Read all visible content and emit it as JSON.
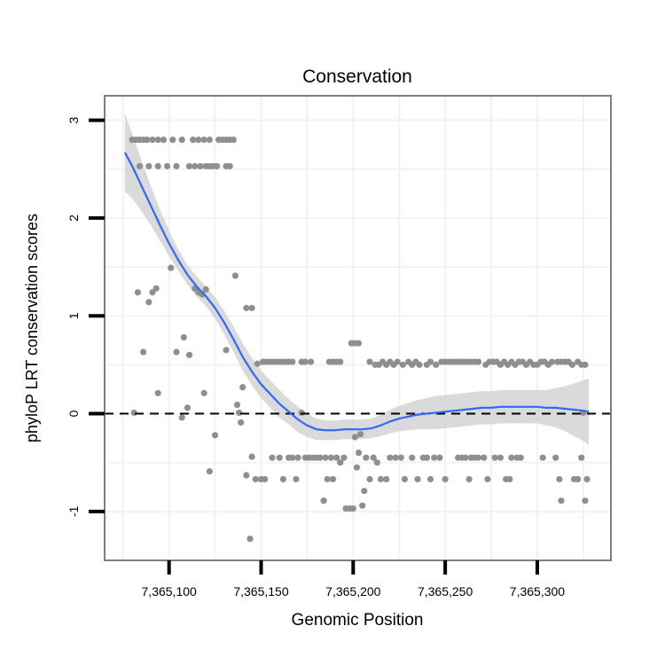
{
  "chart_data": {
    "type": "scatter",
    "title": "Conservation",
    "xlabel": "Genomic Position",
    "ylabel": "phyloP LRT conservation scores",
    "xlim": [
      7365065,
      7365340
    ],
    "ylim": [
      -1.5,
      3.25
    ],
    "x_ticks": [
      7365100,
      7365150,
      7365200,
      7365250,
      7365300
    ],
    "x_tick_labels": [
      "7,365,100",
      "7,365,150",
      "7,365,200",
      "7,365,250",
      "7,365,300"
    ],
    "y_ticks": [
      -1,
      0,
      1,
      2,
      3
    ],
    "y_tick_labels": [
      "-1",
      "0",
      "1",
      "2",
      "3"
    ],
    "reference_line": {
      "y": 0,
      "style": "dashed"
    },
    "colors": {
      "points": "#8f8f8f",
      "smooth": "#3366ff",
      "band": "#d3d3d3",
      "frame": "#7f7f7f",
      "grid": "#f2f2f2"
    },
    "points": [
      [
        7365080,
        2.8
      ],
      [
        7365082,
        2.8
      ],
      [
        7365084,
        2.8
      ],
      [
        7365086,
        2.8
      ],
      [
        7365088,
        2.8
      ],
      [
        7365091,
        2.8
      ],
      [
        7365094,
        2.8
      ],
      [
        7365097,
        2.8
      ],
      [
        7365102,
        2.8
      ],
      [
        7365107,
        2.8
      ],
      [
        7365113,
        2.8
      ],
      [
        7365116,
        2.8
      ],
      [
        7365119,
        2.8
      ],
      [
        7365122,
        2.8
      ],
      [
        7365127,
        2.8
      ],
      [
        7365129,
        2.8
      ],
      [
        7365131,
        2.8
      ],
      [
        7365133,
        2.8
      ],
      [
        7365135,
        2.8
      ],
      [
        7365084,
        2.53
      ],
      [
        7365089,
        2.53
      ],
      [
        7365094,
        2.53
      ],
      [
        7365099,
        2.53
      ],
      [
        7365104,
        2.53
      ],
      [
        7365111,
        2.53
      ],
      [
        7365114,
        2.53
      ],
      [
        7365117,
        2.53
      ],
      [
        7365120,
        2.53
      ],
      [
        7365122,
        2.53
      ],
      [
        7365124,
        2.53
      ],
      [
        7365126,
        2.53
      ],
      [
        7365131,
        2.53
      ],
      [
        7365133,
        2.53
      ],
      [
        7365081,
        0.01
      ],
      [
        7365083,
        1.24
      ],
      [
        7365086,
        0.63
      ],
      [
        7365089,
        1.14
      ],
      [
        7365091,
        1.24
      ],
      [
        7365093,
        1.28
      ],
      [
        7365094,
        0.21
      ],
      [
        7365101,
        1.49
      ],
      [
        7365104,
        0.63
      ],
      [
        7365107,
        -0.04
      ],
      [
        7365108,
        0.78
      ],
      [
        7365110,
        0.06
      ],
      [
        7365111,
        0.6
      ],
      [
        7365114,
        1.28
      ],
      [
        7365116,
        1.24
      ],
      [
        7365118,
        1.22
      ],
      [
        7365119,
        0.21
      ],
      [
        7365120,
        1.27
      ],
      [
        7365122,
        -0.59
      ],
      [
        7365125,
        -0.22
      ],
      [
        7365131,
        0.65
      ],
      [
        7365136,
        1.41
      ],
      [
        7365137,
        0.09
      ],
      [
        7365138,
        0.01
      ],
      [
        7365139,
        -0.09
      ],
      [
        7365140,
        0.27
      ],
      [
        7365142,
        -0.63
      ],
      [
        7365142,
        1.08
      ],
      [
        7365144,
        -1.28
      ],
      [
        7365145,
        -0.44
      ],
      [
        7365145,
        1.08
      ],
      [
        7365147,
        -0.67
      ],
      [
        7365148,
        0.51
      ],
      [
        7365150,
        -0.67
      ],
      [
        7365152,
        -0.67
      ],
      [
        7365151,
        0.53
      ],
      [
        7365153,
        0.53
      ],
      [
        7365155,
        0.53
      ],
      [
        7365157,
        0.53
      ],
      [
        7365159,
        0.53
      ],
      [
        7365161,
        0.53
      ],
      [
        7365163,
        0.53
      ],
      [
        7365165,
        0.53
      ],
      [
        7365167,
        0.53
      ],
      [
        7365172,
        0.53
      ],
      [
        7365174,
        0.53
      ],
      [
        7365177,
        0.53
      ],
      [
        7365187,
        0.53
      ],
      [
        7365189,
        0.53
      ],
      [
        7365191,
        0.53
      ],
      [
        7365193,
        0.53
      ],
      [
        7365199,
        0.72
      ],
      [
        7365201,
        0.72
      ],
      [
        7365203,
        0.72
      ],
      [
        7365209,
        0.53
      ],
      [
        7365212,
        0.5
      ],
      [
        7365214,
        0.5
      ],
      [
        7365216,
        0.53
      ],
      [
        7365218,
        0.5
      ],
      [
        7365220,
        0.53
      ],
      [
        7365222,
        0.5
      ],
      [
        7365224,
        0.53
      ],
      [
        7365227,
        0.5
      ],
      [
        7365230,
        0.53
      ],
      [
        7365232,
        0.5
      ],
      [
        7365234,
        0.53
      ],
      [
        7365236,
        0.5
      ],
      [
        7365240,
        0.5
      ],
      [
        7365242,
        0.53
      ],
      [
        7365245,
        0.5
      ],
      [
        7365248,
        0.53
      ],
      [
        7365250,
        0.53
      ],
      [
        7365252,
        0.53
      ],
      [
        7365254,
        0.53
      ],
      [
        7365256,
        0.53
      ],
      [
        7365258,
        0.53
      ],
      [
        7365260,
        0.53
      ],
      [
        7365262,
        0.53
      ],
      [
        7365264,
        0.53
      ],
      [
        7365266,
        0.53
      ],
      [
        7365268,
        0.53
      ],
      [
        7365272,
        0.5
      ],
      [
        7365274,
        0.53
      ],
      [
        7365276,
        0.53
      ],
      [
        7365278,
        0.53
      ],
      [
        7365280,
        0.5
      ],
      [
        7365282,
        0.53
      ],
      [
        7365284,
        0.5
      ],
      [
        7365286,
        0.53
      ],
      [
        7365288,
        0.5
      ],
      [
        7365290,
        0.53
      ],
      [
        7365292,
        0.53
      ],
      [
        7365294,
        0.5
      ],
      [
        7365296,
        0.53
      ],
      [
        7365298,
        0.5
      ],
      [
        7365300,
        0.5
      ],
      [
        7365302,
        0.53
      ],
      [
        7365304,
        0.53
      ],
      [
        7365306,
        0.5
      ],
      [
        7365308,
        0.53
      ],
      [
        7365311,
        0.53
      ],
      [
        7365313,
        0.53
      ],
      [
        7365315,
        0.53
      ],
      [
        7365317,
        0.53
      ],
      [
        7365319,
        0.5
      ],
      [
        7365322,
        0.53
      ],
      [
        7365324,
        0.5
      ],
      [
        7365326,
        0.5
      ],
      [
        7365156,
        -0.45
      ],
      [
        7365160,
        -0.45
      ],
      [
        7365162,
        -0.67
      ],
      [
        7365165,
        -0.45
      ],
      [
        7365167,
        -0.45
      ],
      [
        7365169,
        -0.67
      ],
      [
        7365170,
        -0.45
      ],
      [
        7365172,
        0.01
      ],
      [
        7365174,
        -0.45
      ],
      [
        7365176,
        -0.45
      ],
      [
        7365178,
        -0.45
      ],
      [
        7365180,
        -0.45
      ],
      [
        7365182,
        -0.45
      ],
      [
        7365184,
        -0.89
      ],
      [
        7365185,
        -0.45
      ],
      [
        7365186,
        -0.67
      ],
      [
        7365188,
        -0.45
      ],
      [
        7365189,
        -0.67
      ],
      [
        7365191,
        -0.45
      ],
      [
        7365193,
        -0.5
      ],
      [
        7365195,
        -0.45
      ],
      [
        7365196,
        -0.97
      ],
      [
        7365198,
        -0.97
      ],
      [
        7365200,
        -0.97
      ],
      [
        7365201,
        -0.24
      ],
      [
        7365202,
        -0.55
      ],
      [
        7365203,
        -0.4
      ],
      [
        7365204,
        -0.21
      ],
      [
        7365205,
        -0.94
      ],
      [
        7365206,
        -0.79
      ],
      [
        7365207,
        -0.45
      ],
      [
        7365209,
        -0.67
      ],
      [
        7365211,
        -0.45
      ],
      [
        7365213,
        -0.5
      ],
      [
        7365215,
        -0.67
      ],
      [
        7365218,
        -0.67
      ],
      [
        7365220,
        -0.45
      ],
      [
        7365223,
        -0.45
      ],
      [
        7365226,
        -0.45
      ],
      [
        7365228,
        -0.67
      ],
      [
        7365232,
        -0.45
      ],
      [
        7365235,
        -0.67
      ],
      [
        7365238,
        -0.45
      ],
      [
        7365240,
        -0.45
      ],
      [
        7365242,
        -0.67
      ],
      [
        7365244,
        -0.45
      ],
      [
        7365247,
        -0.45
      ],
      [
        7365250,
        -0.67
      ],
      [
        7365257,
        -0.45
      ],
      [
        7365259,
        -0.45
      ],
      [
        7365261,
        -0.45
      ],
      [
        7365263,
        -0.67
      ],
      [
        7365264,
        -0.45
      ],
      [
        7365266,
        -0.45
      ],
      [
        7365268,
        -0.45
      ],
      [
        7365271,
        -0.45
      ],
      [
        7365273,
        -0.67
      ],
      [
        7365277,
        -0.45
      ],
      [
        7365280,
        -0.45
      ],
      [
        7365283,
        -0.67
      ],
      [
        7365285,
        -0.67
      ],
      [
        7365286,
        -0.45
      ],
      [
        7365289,
        -0.45
      ],
      [
        7365291,
        -0.45
      ],
      [
        7365303,
        -0.45
      ],
      [
        7365310,
        -0.45
      ],
      [
        7365312,
        -0.67
      ],
      [
        7365313,
        -0.89
      ],
      [
        7365320,
        -0.67
      ],
      [
        7365322,
        -0.67
      ],
      [
        7365324,
        -0.45
      ],
      [
        7365325,
        0.01
      ],
      [
        7365326,
        -0.89
      ],
      [
        7365327,
        -0.67
      ]
    ],
    "smooth": {
      "x": [
        7365076,
        7365080,
        7365085,
        7365090,
        7365095,
        7365100,
        7365105,
        7365110,
        7365115,
        7365120,
        7365125,
        7365130,
        7365135,
        7365140,
        7365145,
        7365150,
        7365155,
        7365160,
        7365165,
        7365170,
        7365175,
        7365180,
        7365185,
        7365190,
        7365195,
        7365200,
        7365205,
        7365210,
        7365215,
        7365220,
        7365225,
        7365230,
        7365235,
        7365240,
        7365245,
        7365250,
        7365255,
        7365260,
        7365265,
        7365270,
        7365275,
        7365280,
        7365285,
        7365290,
        7365295,
        7365300,
        7365305,
        7365310,
        7365315,
        7365320,
        7365325,
        7365328
      ],
      "y": [
        2.67,
        2.53,
        2.33,
        2.13,
        1.93,
        1.74,
        1.57,
        1.42,
        1.3,
        1.2,
        1.08,
        0.93,
        0.76,
        0.58,
        0.43,
        0.3,
        0.2,
        0.1,
        0.02,
        -0.06,
        -0.12,
        -0.16,
        -0.17,
        -0.17,
        -0.16,
        -0.16,
        -0.16,
        -0.15,
        -0.12,
        -0.08,
        -0.05,
        -0.03,
        -0.01,
        0,
        0.01,
        0.02,
        0.03,
        0.04,
        0.05,
        0.06,
        0.06,
        0.07,
        0.07,
        0.07,
        0.07,
        0.07,
        0.06,
        0.06,
        0.05,
        0.04,
        0.03,
        0.02
      ],
      "band_width": [
        0.4,
        0.33,
        0.26,
        0.2,
        0.16,
        0.13,
        0.11,
        0.1,
        0.1,
        0.1,
        0.11,
        0.12,
        0.13,
        0.14,
        0.14,
        0.14,
        0.14,
        0.14,
        0.13,
        0.13,
        0.12,
        0.11,
        0.1,
        0.1,
        0.1,
        0.1,
        0.1,
        0.1,
        0.11,
        0.12,
        0.13,
        0.14,
        0.15,
        0.16,
        0.17,
        0.17,
        0.17,
        0.17,
        0.17,
        0.17,
        0.17,
        0.17,
        0.17,
        0.17,
        0.17,
        0.17,
        0.18,
        0.2,
        0.23,
        0.27,
        0.31,
        0.34
      ]
    }
  }
}
